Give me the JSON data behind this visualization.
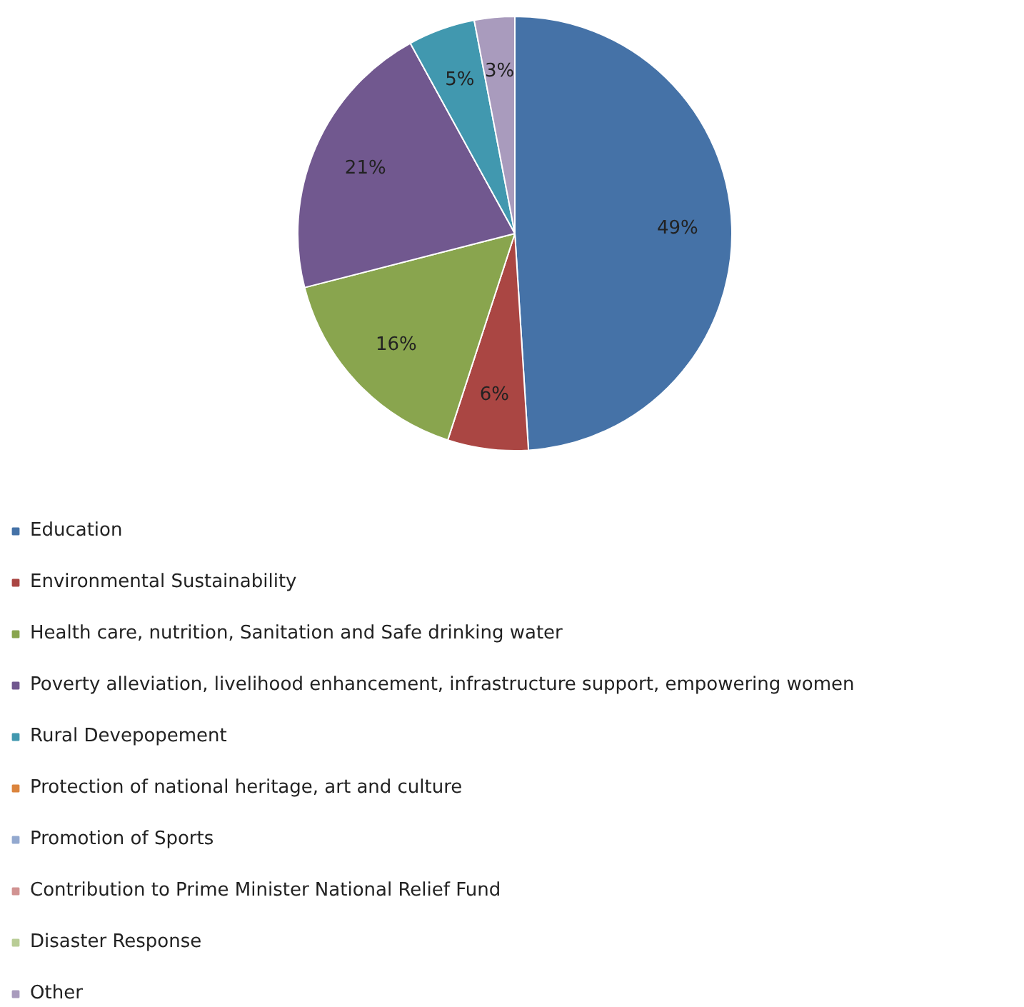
{
  "chart_data": {
    "type": "pie",
    "categories": [
      "Education",
      "Environmental Sustainability",
      "Health care, nutrition, Sanitation and Safe drinking water",
      "Poverty alleviation, livelihood enhancement, infrastructure support, empowering women",
      "Rural Devepopement",
      "Protection of national heritage, art and culture",
      "Promotion of Sports",
      "Contribution to Prime Minister National Relief Fund",
      "Disaster Response",
      "Other"
    ],
    "values": [
      49,
      6,
      16,
      21,
      5,
      0,
      0,
      0,
      0,
      3
    ],
    "colors": [
      "#4572a7",
      "#aa4643",
      "#89a54e",
      "#71588f",
      "#4198af",
      "#db843d",
      "#93a9cf",
      "#d19392",
      "#b9cd96",
      "#a99bbd"
    ],
    "value_labels": [
      "49%",
      "6%",
      "16%",
      "21%",
      "5%",
      null,
      null,
      null,
      null,
      "3%"
    ],
    "legend": "bottom"
  }
}
